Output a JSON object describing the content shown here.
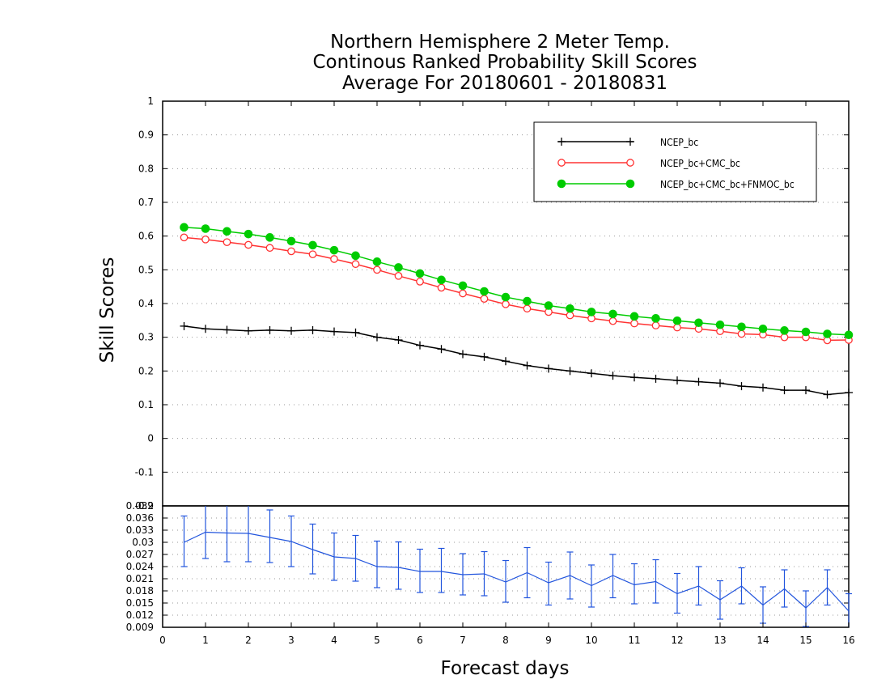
{
  "chart_data": [
    {
      "type": "line",
      "title": [
        "Northern Hemisphere 2 Meter Temp.",
        "Continous Ranked Probability Skill Scores",
        "Average For 20180601 - 20180831"
      ],
      "xlabel": "",
      "ylabel": "Skill Scores",
      "xlim": [
        0,
        16
      ],
      "ylim": [
        -0.2,
        1
      ],
      "yticks": [
        "-0.2",
        "-0.1",
        "0",
        "0.1",
        "0.2",
        "0.3",
        "0.4",
        "0.5",
        "0.6",
        "0.7",
        "0.8",
        "0.9",
        "1"
      ],
      "grid": true,
      "legend": "top-right",
      "x": [
        0.5,
        1,
        1.5,
        2,
        2.5,
        3,
        3.5,
        4,
        4.5,
        5,
        5.5,
        6,
        6.5,
        7,
        7.5,
        8,
        8.5,
        9,
        9.5,
        10,
        10.5,
        11,
        11.5,
        12,
        12.5,
        13,
        13.5,
        14,
        14.5,
        15,
        15.5,
        16
      ],
      "series": [
        {
          "name": "NCEP_bc",
          "color": "#000000",
          "marker": "plus",
          "values": [
            0.333,
            0.325,
            0.322,
            0.319,
            0.321,
            0.319,
            0.321,
            0.317,
            0.314,
            0.3,
            0.292,
            0.276,
            0.265,
            0.25,
            0.242,
            0.229,
            0.216,
            0.207,
            0.2,
            0.193,
            0.186,
            0.181,
            0.177,
            0.172,
            0.168,
            0.164,
            0.155,
            0.151,
            0.143,
            0.143,
            0.13,
            0.136
          ]
        },
        {
          "name": "NCEP_bc+CMC_bc",
          "color": "#ff3333",
          "marker": "open-circle",
          "values": [
            0.596,
            0.59,
            0.582,
            0.574,
            0.565,
            0.555,
            0.546,
            0.532,
            0.517,
            0.5,
            0.482,
            0.465,
            0.447,
            0.43,
            0.414,
            0.398,
            0.385,
            0.375,
            0.365,
            0.356,
            0.348,
            0.341,
            0.335,
            0.329,
            0.325,
            0.318,
            0.31,
            0.308,
            0.3,
            0.3,
            0.291,
            0.292
          ]
        },
        {
          "name": "NCEP_bc+CMC_bc+FNMOC_bc",
          "color": "#00cc00",
          "marker": "filled-circle",
          "values": [
            0.626,
            0.622,
            0.614,
            0.606,
            0.596,
            0.585,
            0.573,
            0.558,
            0.542,
            0.524,
            0.507,
            0.489,
            0.47,
            0.453,
            0.436,
            0.419,
            0.407,
            0.394,
            0.385,
            0.375,
            0.369,
            0.362,
            0.356,
            0.349,
            0.343,
            0.337,
            0.331,
            0.325,
            0.32,
            0.316,
            0.31,
            0.307
          ]
        }
      ]
    },
    {
      "type": "line",
      "title": "",
      "xlabel": "Forecast days",
      "ylabel": "",
      "xlim": [
        0,
        16
      ],
      "ylim": [
        0.009,
        0.039
      ],
      "xticks": [
        "0",
        "1",
        "2",
        "3",
        "4",
        "5",
        "6",
        "7",
        "8",
        "9",
        "10",
        "11",
        "12",
        "13",
        "14",
        "15",
        "16"
      ],
      "yticks": [
        "0.009",
        "0.012",
        "0.015",
        "0.018",
        "0.021",
        "0.024",
        "0.027",
        "0.03",
        "0.033",
        "0.036",
        "0.039"
      ],
      "top_overlap_label": "-0.2",
      "grid": true,
      "color": "#2255dd",
      "x": [
        0.5,
        1,
        1.5,
        2,
        2.5,
        3,
        3.5,
        4,
        4.5,
        5,
        5.5,
        6,
        6.5,
        7,
        7.5,
        8,
        8.5,
        9,
        9.5,
        10,
        10.5,
        11,
        11.5,
        12,
        12.5,
        13,
        13.5,
        14,
        14.5,
        15,
        15.5,
        16
      ],
      "values": [
        0.03,
        0.0325,
        0.0323,
        0.0322,
        0.0312,
        0.0302,
        0.0282,
        0.0264,
        0.026,
        0.024,
        0.0238,
        0.0228,
        0.0228,
        0.022,
        0.0222,
        0.0202,
        0.0225,
        0.02,
        0.0218,
        0.0193,
        0.0218,
        0.0195,
        0.0203,
        0.0173,
        0.0192,
        0.0158,
        0.0192,
        0.0145,
        0.0185,
        0.0138,
        0.0188,
        0.013
      ],
      "error_low": [
        0.024,
        0.026,
        0.0252,
        0.0252,
        0.025,
        0.024,
        0.0222,
        0.0206,
        0.0204,
        0.0188,
        0.0184,
        0.0176,
        0.0176,
        0.017,
        0.0168,
        0.0152,
        0.0163,
        0.0145,
        0.016,
        0.014,
        0.0163,
        0.0148,
        0.015,
        0.0125,
        0.0145,
        0.011,
        0.0148,
        0.01,
        0.014,
        0.0092,
        0.0145,
        0.0088
      ],
      "error_high": [
        0.0365,
        0.0392,
        0.0395,
        0.0393,
        0.038,
        0.0365,
        0.0345,
        0.0323,
        0.0317,
        0.0303,
        0.0301,
        0.0283,
        0.0285,
        0.0272,
        0.0277,
        0.0255,
        0.0287,
        0.0251,
        0.0276,
        0.0244,
        0.027,
        0.0247,
        0.0257,
        0.0223,
        0.024,
        0.0205,
        0.0237,
        0.019,
        0.0232,
        0.018,
        0.0232,
        0.0173
      ]
    }
  ]
}
